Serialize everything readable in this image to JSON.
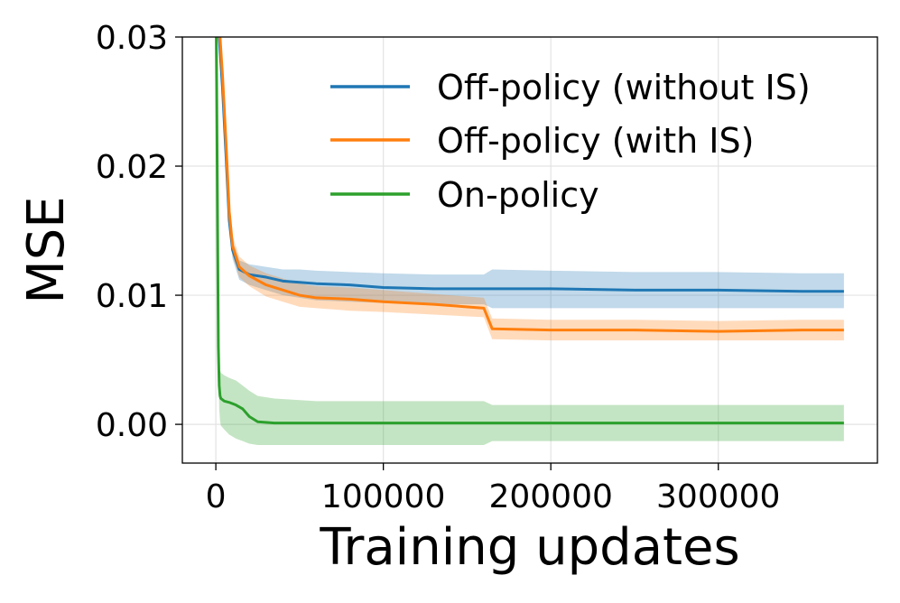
{
  "chart_data": {
    "type": "line",
    "title": "",
    "xlabel": "Training updates",
    "ylabel": "MSE",
    "xlim": [
      -20000,
      395000
    ],
    "ylim": [
      -0.003,
      0.03
    ],
    "xticks": [
      0,
      100000,
      200000,
      300000
    ],
    "xtick_labels": [
      "0",
      "100000",
      "200000",
      "300000"
    ],
    "yticks": [
      0.0,
      0.01,
      0.02,
      0.03
    ],
    "ytick_labels": [
      "0.00",
      "0.01",
      "0.02",
      "0.03"
    ],
    "grid": true,
    "legend_position": "top-right",
    "series": [
      {
        "name": "Off-policy (without IS)",
        "color": "#1f77b4",
        "x": [
          0,
          2000,
          4000,
          6000,
          8000,
          10000,
          14000,
          20000,
          30000,
          40000,
          50000,
          60000,
          80000,
          100000,
          130000,
          160000,
          165000,
          200000,
          250000,
          300000,
          350000,
          375000
        ],
        "y": [
          0.035,
          0.03,
          0.026,
          0.021,
          0.0158,
          0.0135,
          0.012,
          0.0116,
          0.0114,
          0.0111,
          0.011,
          0.0109,
          0.0108,
          0.0106,
          0.0105,
          0.0105,
          0.0105,
          0.0105,
          0.0104,
          0.0104,
          0.0103,
          0.0103
        ],
        "band_lower": [
          0.034,
          0.029,
          0.025,
          0.02,
          0.015,
          0.0128,
          0.0112,
          0.0108,
          0.0104,
          0.01,
          0.0098,
          0.0096,
          0.0095,
          0.0094,
          0.0093,
          0.0093,
          0.009,
          0.009,
          0.009,
          0.009,
          0.009,
          0.009
        ],
        "band_upper": [
          0.036,
          0.031,
          0.027,
          0.022,
          0.0166,
          0.0142,
          0.0127,
          0.0124,
          0.0122,
          0.012,
          0.012,
          0.0119,
          0.0118,
          0.0117,
          0.0116,
          0.0116,
          0.012,
          0.0119,
          0.0118,
          0.0118,
          0.0117,
          0.0117
        ]
      },
      {
        "name": "Off-policy (with IS)",
        "color": "#ff7f0e",
        "x": [
          0,
          2000,
          4000,
          6000,
          8000,
          10000,
          14000,
          20000,
          30000,
          40000,
          50000,
          60000,
          80000,
          100000,
          130000,
          160000,
          165000,
          200000,
          250000,
          300000,
          350000,
          375000
        ],
        "y": [
          0.036,
          0.031,
          0.027,
          0.022,
          0.0165,
          0.0138,
          0.0122,
          0.0115,
          0.0108,
          0.0104,
          0.01,
          0.0098,
          0.0097,
          0.0095,
          0.0093,
          0.009,
          0.0074,
          0.0073,
          0.0073,
          0.0072,
          0.0073,
          0.0073
        ],
        "band_lower": [
          0.035,
          0.03,
          0.026,
          0.021,
          0.0158,
          0.013,
          0.0114,
          0.0107,
          0.0099,
          0.0095,
          0.0091,
          0.009,
          0.0088,
          0.0087,
          0.0085,
          0.0083,
          0.0066,
          0.0065,
          0.0065,
          0.0065,
          0.0065,
          0.0065
        ],
        "band_upper": [
          0.037,
          0.032,
          0.028,
          0.023,
          0.0172,
          0.0146,
          0.013,
          0.0123,
          0.0117,
          0.0113,
          0.0109,
          0.0107,
          0.0106,
          0.0104,
          0.0101,
          0.0098,
          0.0082,
          0.0081,
          0.0081,
          0.008,
          0.0081,
          0.0081
        ]
      },
      {
        "name": "On-policy",
        "color": "#2ca02c",
        "x": [
          0,
          500,
          1000,
          1500,
          2000,
          2500,
          3000,
          5000,
          8000,
          12000,
          16000,
          20000,
          25000,
          35000,
          60000,
          100000,
          160000,
          165000,
          250000,
          375000
        ],
        "y": [
          0.034,
          0.026,
          0.016,
          0.006,
          0.003,
          0.0022,
          0.002,
          0.0018,
          0.0017,
          0.0015,
          0.0012,
          0.0006,
          0.0002,
          0.0001,
          0.0001,
          0.0001,
          0.0001,
          0.0001,
          0.0001,
          0.0001
        ],
        "band_lower": [
          0.033,
          0.025,
          0.015,
          0.005,
          0.0012,
          0.0003,
          -0.0001,
          -0.0004,
          -0.0008,
          -0.0011,
          -0.0013,
          -0.0015,
          -0.0016,
          -0.0016,
          -0.0016,
          -0.0016,
          -0.0016,
          -0.0013,
          -0.0013,
          -0.0013
        ],
        "band_upper": [
          0.035,
          0.027,
          0.017,
          0.007,
          0.0048,
          0.0042,
          0.004,
          0.0038,
          0.0036,
          0.0034,
          0.003,
          0.0026,
          0.0022,
          0.002,
          0.0018,
          0.0018,
          0.0018,
          0.0015,
          0.0015,
          0.0015
        ]
      }
    ]
  }
}
